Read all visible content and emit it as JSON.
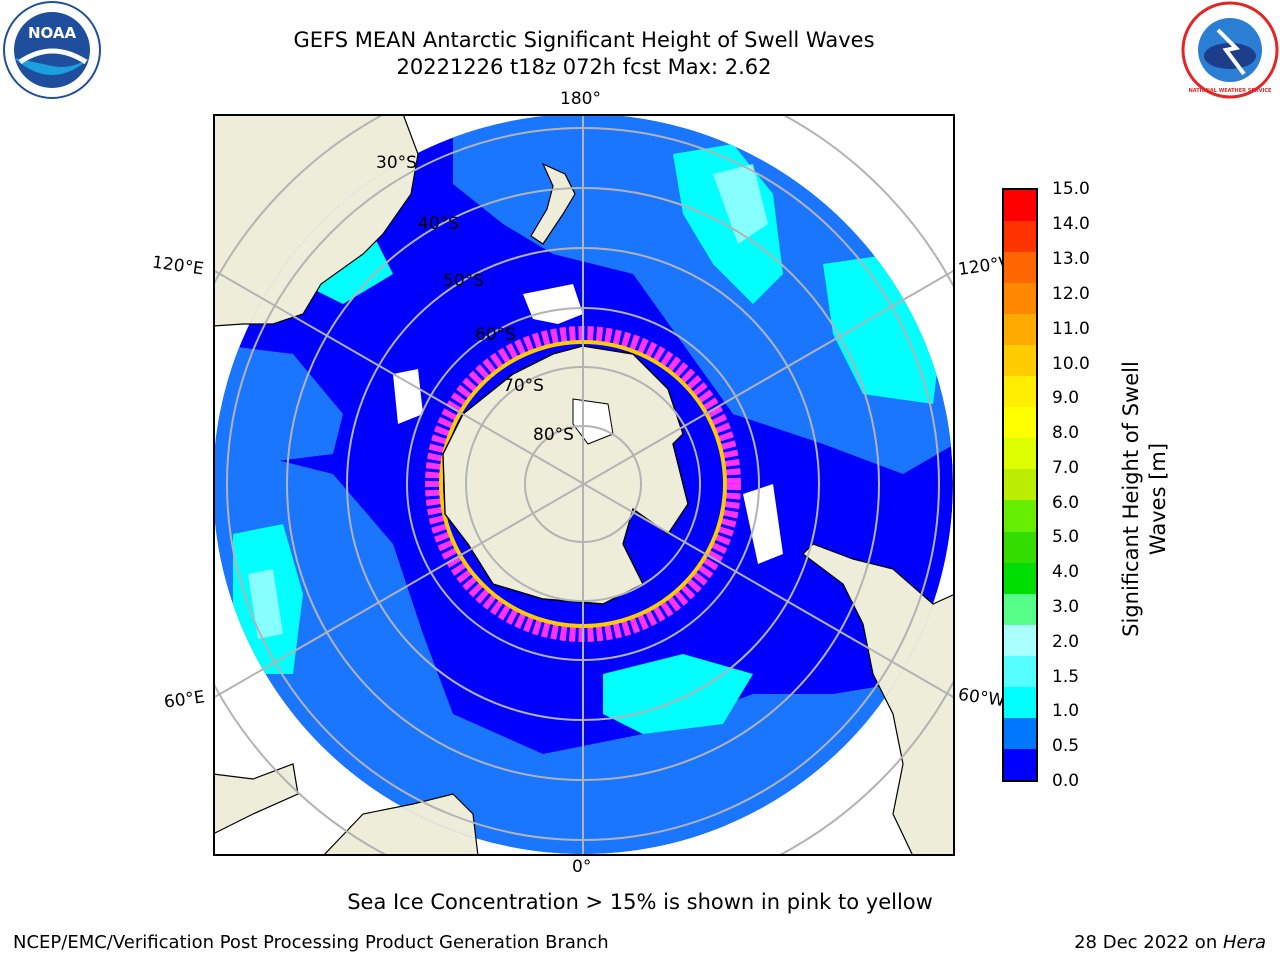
{
  "header": {
    "title": "GEFS MEAN Antarctic Significant Height of Swell Waves",
    "subtitle": "20221226 t18z 072h fcst   Max: 2.62",
    "left_logo_text": "NOAA",
    "right_logo_text": "NATIONAL WEATHER SERVICE"
  },
  "map": {
    "projection": "south-polar-stereographic",
    "longitude_labels": {
      "top": "180°",
      "bottom": "0°",
      "left_upper": "120°E",
      "left_lower": "60°E",
      "right_upper": "120°W",
      "right_lower": "60°W"
    },
    "latitude_labels": [
      "30°S",
      "40°S",
      "50°S",
      "60°S",
      "70°S",
      "80°S"
    ],
    "colors": {
      "ocean_low": "#0000ff",
      "ocean_mid": "#1a75ff",
      "ocean_high": "#00ffff",
      "land": "#eeedda",
      "ice_pink": "#ff33ff",
      "ice_yellow": "#ffcc00",
      "grid": "#b3b3b3"
    }
  },
  "colorbar": {
    "label_line1": "Significant Height of Swell",
    "label_line2": "Waves [m]",
    "ticks": [
      "15.0",
      "14.0",
      "13.0",
      "12.0",
      "11.0",
      "10.0",
      "9.0",
      "8.0",
      "7.0",
      "6.0",
      "5.0",
      "4.0",
      "3.0",
      "2.0",
      "1.5",
      "1.0",
      "0.5",
      "0.0"
    ],
    "colors": [
      "#ff0000",
      "#ff3300",
      "#ff6600",
      "#ff8800",
      "#ffaa00",
      "#ffcc00",
      "#ffee00",
      "#ffff00",
      "#ddff00",
      "#bbee00",
      "#66ee00",
      "#33dd00",
      "#00dd00",
      "#55ff88",
      "#aaffff",
      "#55ffff",
      "#00ffff",
      "#0077ff",
      "#0000ff"
    ]
  },
  "note": "Sea Ice Concentration > 15% is shown in pink to yellow",
  "footer": {
    "left": "NCEP/EMC/Verification Post Processing Product Generation Branch",
    "right_prefix": "28 Dec 2022 on ",
    "right_machine": "Hera"
  }
}
